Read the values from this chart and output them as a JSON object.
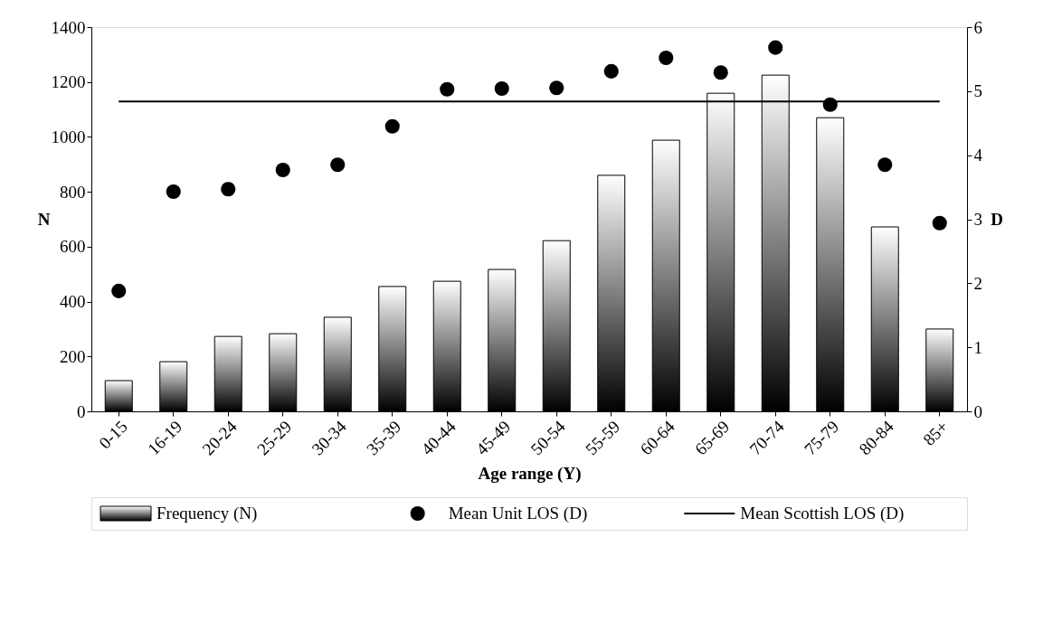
{
  "chart_data": {
    "type": "bar",
    "xlabel": "Age range (Y)",
    "ylabel": "N",
    "y2label": "D",
    "categories": [
      "0-15",
      "16-19",
      "20-24",
      "25-29",
      "30-34",
      "35-39",
      "40-44",
      "45-49",
      "50-54",
      "55-59",
      "60-64",
      "65-69",
      "70-74",
      "75-79",
      "80-84",
      "85+"
    ],
    "series": [
      {
        "name": "Frequency (N)",
        "color": "#000000",
        "values": [
          112,
          181,
          273,
          283,
          343,
          455,
          474,
          517,
          622,
          860,
          988,
          1159,
          1225,
          1070,
          672,
          300
        ]
      },
      {
        "name": "Mean Unit LOS (D)",
        "type": "scatter",
        "axis": "y2",
        "color": "#000000",
        "marker": "circle",
        "values": [
          1.88,
          3.43,
          3.47,
          3.77,
          3.85,
          4.45,
          5.03,
          5.04,
          5.05,
          5.31,
          5.52,
          5.29,
          5.68,
          4.79,
          3.85,
          2.94
        ]
      },
      {
        "name": "Mean Scottish LOS (D)",
        "type": "line",
        "axis": "y2",
        "color": "#000000",
        "line_style": "solid",
        "values": [
          4.84,
          4.84,
          4.84,
          4.84,
          4.84,
          4.84,
          4.84,
          4.84,
          4.84,
          4.84,
          4.84,
          4.84,
          4.84,
          4.84,
          4.84,
          4.84
        ]
      }
    ],
    "ylim": [
      0,
      1400
    ],
    "yticks": [
      0,
      200,
      400,
      600,
      800,
      1000,
      1200,
      1400
    ],
    "y2lim": [
      0,
      6
    ],
    "y2ticks": [
      0,
      1,
      2,
      3,
      4,
      5,
      6
    ],
    "grid": false,
    "legend": "bottom"
  }
}
